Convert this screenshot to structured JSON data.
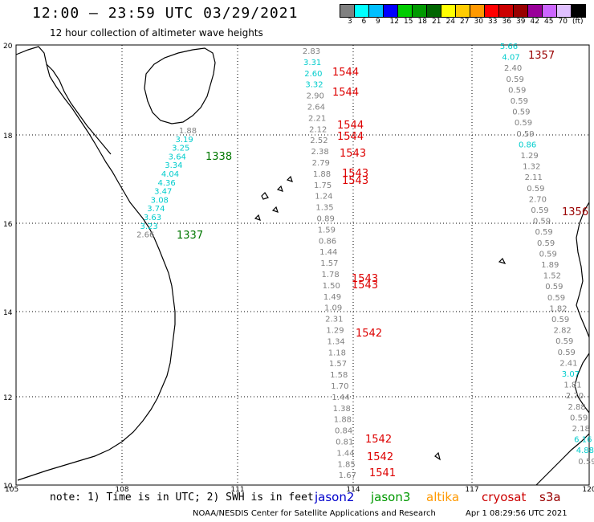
{
  "title": "12:00 – 23:59 UTC 03/29/2021",
  "subtitle": "12 hour collection of altimeter wave heights",
  "legend": {
    "colors": [
      "#808080",
      "#00ffff",
      "#00bfff",
      "#0000ff",
      "#00cc00",
      "#009900",
      "#006600",
      "#ffff00",
      "#ffcc00",
      "#ff9900",
      "#ff0000",
      "#cc0000",
      "#990000",
      "#990099",
      "#cc66ff",
      "#e0c0ff",
      "#000000"
    ],
    "labels": [
      "3",
      "6",
      "9",
      "12",
      "15",
      "18",
      "21",
      "24",
      "27",
      "30",
      "33",
      "36",
      "39",
      "42",
      "45",
      "70"
    ],
    "unit": "(ft)"
  },
  "axes": {
    "lon_labels": [
      "105",
      "108",
      "111",
      "114",
      "117",
      "120"
    ],
    "lat_labels": [
      "20",
      "18",
      "16",
      "14",
      "12",
      "10"
    ]
  },
  "note": "note: 1) Time is in UTC; 2) SWH is in feet",
  "satellites": [
    {
      "name": "jason2",
      "color": "#0000cc"
    },
    {
      "name": "jason3",
      "color": "#009900"
    },
    {
      "name": "altika",
      "color": "#ff9900"
    },
    {
      "name": "cryosat",
      "color": "#cc0000"
    },
    {
      "name": "s3a",
      "color": "#990000"
    }
  ],
  "credit": "NOAA/NESDIS Center for Satellite Applications and Research",
  "timestamp": "Apr  1 08:29:56 UTC 2021",
  "tracks": [
    {
      "id": "track-1338",
      "pass_label": "1338",
      "pass_color": "#007700",
      "value_color": "#00cccc",
      "values": [
        "1.88",
        "3.19",
        "3.25",
        "3.64",
        "3.34",
        "4.04",
        "4.36",
        "3.47",
        "3.08",
        "3.74",
        "3.63",
        "3.23",
        "2.66"
      ]
    },
    {
      "id": "track-1337",
      "pass_label": "1337",
      "pass_color": "#007700",
      "value_color": "#808080",
      "values": []
    },
    {
      "id": "track-center",
      "pass_color": "#dd0000",
      "value_color": "#808080",
      "passes": [
        "1544",
        "1544",
        "1544",
        "1544",
        "1543",
        "1543",
        "1543",
        "1543",
        "1543",
        "1542",
        "1542",
        "1542",
        "1541"
      ],
      "values": [
        "2.83",
        "3.31",
        "2.60",
        "3.32",
        "2.90",
        "2.64",
        "2.21",
        "2.12",
        "2.52",
        "2.38",
        "2.79",
        "1.88",
        "1.75",
        "1.24",
        "1.35",
        "0.89",
        "1.59",
        "0.86",
        "1.44",
        "1.57",
        "1.78",
        "1.50",
        "1.49",
        "1.09",
        "2.31",
        "1.29",
        "1.34",
        "1.18",
        "1.57",
        "1.58",
        "1.70",
        "1.44",
        "1.38",
        "1.88",
        "0.84",
        "0.81",
        "1.44",
        "1.85",
        "1.67"
      ]
    },
    {
      "id": "track-1357",
      "pass_label": "1357",
      "pass_color": "#990000",
      "value_color": "#808080",
      "values": [
        "5.66",
        "4.07",
        "2.40",
        "0.59",
        "0.59",
        "0.59",
        "0.59",
        "0.59",
        "0.59",
        "0.86",
        "1.29",
        "1.32",
        "2.11",
        "0.59",
        "2.70",
        "0.59",
        "0.59",
        "0.59",
        "0.59",
        "0.59",
        "1.89",
        "1.52",
        "0.59",
        "0.59",
        "1.82",
        "0.59",
        "2.82",
        "0.59",
        "0.59",
        "2.41",
        "3.07",
        "1.81",
        "2.70",
        "2.88",
        "0.59",
        "2.18",
        "6.16",
        "4.88",
        "0.59"
      ]
    },
    {
      "id": "track-1356",
      "pass_label": "1356",
      "pass_color": "#990000",
      "values": []
    }
  ]
}
